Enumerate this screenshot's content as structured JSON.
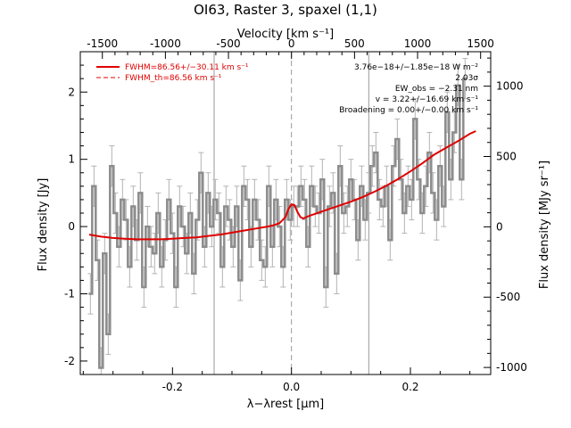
{
  "title": "OI63, Raster 3, spaxel (1,1)",
  "axes": {
    "bottom_label": "λ−λrest [μm]",
    "top_label": "Velocity [km s⁻¹]",
    "left_label": "Flux density [Jy]",
    "right_label": "Flux density [MJy sr⁻¹]"
  },
  "legend": {
    "fit": "FWHM=86.56+/−30.11 km s⁻¹",
    "theory": "FWHM_th=86.56 km s⁻¹"
  },
  "notes": [
    "3.76e−18+/−1.85e−18 W m⁻²",
    "2.03σ",
    "EW_obs = −2.31 nm",
    "v = 3.22+/−16.69 km s⁻¹",
    "Broadening = 0.00+/−0.00 km s⁻¹"
  ],
  "colors": {
    "data": "#8c8c8c",
    "fit": "#e00000",
    "axis": "#000000",
    "marker": "#999999"
  },
  "chart_data": {
    "type": "line",
    "title": "OI63, Raster 3, spaxel (1,1)",
    "xlabel": "λ−λrest [μm]",
    "ylabel": "Flux density [Jy]",
    "xlim": [
      -0.355,
      0.335
    ],
    "ylim": [
      -2.2,
      2.6
    ],
    "x_ticks": [
      -0.2,
      0.0,
      0.2
    ],
    "y_ticks": [
      -2,
      -1,
      0,
      1,
      2
    ],
    "top_axis": {
      "label": "Velocity [km s⁻¹]",
      "xlim": [
        -1675,
        1580
      ],
      "ticks": [
        -1500,
        -1000,
        -500,
        0,
        500,
        1000,
        1500
      ]
    },
    "right_axis": {
      "label": "Flux density [MJy sr⁻¹]",
      "ylim": [
        -1050,
        1245
      ],
      "ticks": [
        -1000,
        -500,
        0,
        500,
        1000
      ]
    },
    "vertical_markers": [
      -0.13,
      0.0,
      0.13
    ],
    "series": [
      {
        "name": "data",
        "style": "step",
        "x": [
          -0.338,
          -0.332,
          -0.326,
          -0.32,
          -0.314,
          -0.308,
          -0.302,
          -0.296,
          -0.29,
          -0.284,
          -0.278,
          -0.272,
          -0.266,
          -0.26,
          -0.254,
          -0.248,
          -0.242,
          -0.236,
          -0.23,
          -0.224,
          -0.218,
          -0.212,
          -0.206,
          -0.2,
          -0.194,
          -0.188,
          -0.182,
          -0.176,
          -0.17,
          -0.164,
          -0.158,
          -0.152,
          -0.146,
          -0.14,
          -0.134,
          -0.128,
          -0.122,
          -0.116,
          -0.11,
          -0.104,
          -0.098,
          -0.092,
          -0.086,
          -0.08,
          -0.074,
          -0.068,
          -0.062,
          -0.056,
          -0.05,
          -0.044,
          -0.038,
          -0.032,
          -0.026,
          -0.02,
          -0.014,
          -0.008,
          -0.002,
          0.004,
          0.01,
          0.016,
          0.022,
          0.028,
          0.034,
          0.04,
          0.046,
          0.052,
          0.058,
          0.064,
          0.07,
          0.076,
          0.082,
          0.088,
          0.094,
          0.1,
          0.106,
          0.112,
          0.118,
          0.124,
          0.13,
          0.136,
          0.142,
          0.148,
          0.154,
          0.16,
          0.166,
          0.172,
          0.178,
          0.184,
          0.19,
          0.196,
          0.202,
          0.208,
          0.214,
          0.22,
          0.226,
          0.232,
          0.238,
          0.244,
          0.25,
          0.256,
          0.262,
          0.268,
          0.274,
          0.28,
          0.286,
          0.292
        ],
        "y": [
          -1.0,
          0.6,
          -0.5,
          -2.1,
          -0.4,
          -1.6,
          0.9,
          0.2,
          -0.3,
          0.4,
          0.1,
          -0.6,
          0.3,
          -0.2,
          0.5,
          -0.9,
          0.0,
          -0.3,
          -0.4,
          0.2,
          -0.6,
          -0.2,
          0.4,
          -0.1,
          -0.9,
          0.3,
          0.0,
          -0.4,
          0.2,
          -0.7,
          0.1,
          0.8,
          -0.3,
          0.5,
          0.0,
          0.4,
          0.2,
          -0.6,
          0.3,
          0.1,
          -0.3,
          0.3,
          -0.8,
          0.6,
          0.4,
          -0.3,
          0.4,
          0.1,
          -0.5,
          -0.6,
          0.6,
          -0.3,
          0.4,
          0.0,
          -0.6,
          0.4,
          0.1,
          0.3,
          0.3,
          0.6,
          0.4,
          -0.3,
          0.6,
          0.3,
          0.2,
          0.7,
          -0.9,
          0.3,
          0.5,
          -0.7,
          0.9,
          0.2,
          0.3,
          0.7,
          0.4,
          -0.2,
          0.6,
          0.1,
          0.5,
          0.9,
          1.1,
          0.4,
          0.3,
          0.6,
          -0.2,
          0.9,
          1.3,
          0.7,
          0.2,
          0.6,
          0.4,
          1.6,
          0.7,
          0.2,
          0.6,
          1.1,
          0.5,
          0.1,
          0.9,
          0.3,
          1.7,
          0.7,
          1.4,
          2.1,
          0.7,
          2.2
        ],
        "yerr": 0.3
      },
      {
        "name": "fit",
        "style": "line",
        "x": [
          -0.34,
          -0.32,
          -0.3,
          -0.28,
          -0.26,
          -0.24,
          -0.22,
          -0.2,
          -0.18,
          -0.16,
          -0.14,
          -0.12,
          -0.1,
          -0.08,
          -0.06,
          -0.04,
          -0.03,
          -0.02,
          -0.01,
          -0.005,
          0.0,
          0.005,
          0.01,
          0.015,
          0.02,
          0.03,
          0.04,
          0.06,
          0.08,
          0.1,
          0.12,
          0.14,
          0.16,
          0.18,
          0.2,
          0.22,
          0.24,
          0.26,
          0.28,
          0.3,
          0.31
        ],
        "y": [
          -0.12,
          -0.15,
          -0.17,
          -0.18,
          -0.19,
          -0.19,
          -0.19,
          -0.18,
          -0.17,
          -0.16,
          -0.14,
          -0.12,
          -0.09,
          -0.06,
          -0.03,
          0.0,
          0.02,
          0.05,
          0.14,
          0.26,
          0.33,
          0.32,
          0.22,
          0.14,
          0.12,
          0.16,
          0.19,
          0.25,
          0.31,
          0.37,
          0.44,
          0.52,
          0.61,
          0.71,
          0.82,
          0.94,
          1.07,
          1.17,
          1.27,
          1.38,
          1.42
        ]
      }
    ]
  }
}
